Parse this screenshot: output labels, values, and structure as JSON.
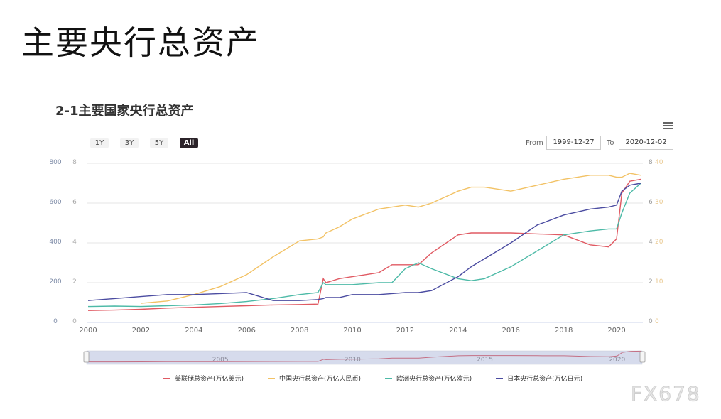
{
  "slide": {
    "title": "主要央行总资产"
  },
  "chart": {
    "title": "2-1主要国家央行总资产",
    "range_buttons": [
      {
        "label": "1Y",
        "active": false
      },
      {
        "label": "3Y",
        "active": false
      },
      {
        "label": "5Y",
        "active": false
      },
      {
        "label": "All",
        "active": true
      }
    ],
    "from_label": "From",
    "from_value": "1999-12-27",
    "to_label": "To",
    "to_value": "2020-12-02",
    "menu_icon": "hamburger-menu-icon",
    "navigator_labels": [
      "2005",
      "2010",
      "2015",
      "2020"
    ],
    "watermark": "FX678"
  },
  "chart_data": {
    "type": "line",
    "title": "2-1主要国家央行总资产",
    "x": [
      2000,
      2001,
      2002,
      2003,
      2004,
      2005,
      2006,
      2007,
      2008,
      2008.7,
      2008.9,
      2009,
      2009.5,
      2010,
      2011,
      2011.5,
      2012,
      2012.5,
      2013,
      2014,
      2014.5,
      2015,
      2016,
      2017,
      2018,
      2019,
      2019.7,
      2020,
      2020.2,
      2020.5,
      2020.92
    ],
    "x_ticks": [
      "2000",
      "2002",
      "2004",
      "2006",
      "2008",
      "2010",
      "2012",
      "2014",
      "2016",
      "2018",
      "2020"
    ],
    "y_axes": [
      {
        "position": "left-outer",
        "ticks": [
          "0",
          "200",
          "400",
          "600",
          "800"
        ],
        "range": [
          0,
          800
        ],
        "color": "#7c8aa6"
      },
      {
        "position": "left-inner",
        "ticks": [
          "0",
          "2",
          "4",
          "6",
          "8"
        ],
        "range": [
          0,
          8
        ],
        "color": "#a9a9a9"
      },
      {
        "position": "right-inner",
        "ticks": [
          "0",
          "2",
          "4",
          "6",
          "8"
        ],
        "range": [
          0,
          8
        ],
        "color": "#999999"
      },
      {
        "position": "right-outer",
        "ticks": [
          "0",
          "10",
          "20",
          "30",
          "40"
        ],
        "range": [
          0,
          40
        ],
        "color": "#e9c88f"
      }
    ],
    "series": [
      {
        "name": "美联储总资产(万亿美元)",
        "color": "#e05a63",
        "axis": "left-inner",
        "values": [
          0.6,
          0.62,
          0.66,
          0.72,
          0.76,
          0.8,
          0.84,
          0.88,
          0.9,
          0.92,
          2.2,
          2.0,
          2.2,
          2.3,
          2.5,
          2.9,
          2.9,
          2.9,
          3.5,
          4.4,
          4.5,
          4.5,
          4.5,
          4.45,
          4.4,
          3.9,
          3.8,
          4.2,
          6.5,
          7.1,
          7.2
        ]
      },
      {
        "name": "中国央行总资产(万亿人民币)",
        "color": "#f2c265",
        "axis": "right-outer",
        "values": [
          null,
          null,
          4.8,
          5.4,
          7.0,
          9.0,
          12.0,
          16.5,
          20.5,
          21.0,
          21.5,
          22.5,
          24.0,
          26.0,
          28.5,
          29.0,
          29.5,
          29.0,
          30.0,
          33.0,
          34.0,
          34.0,
          33.0,
          34.5,
          36.0,
          37.0,
          37.0,
          36.5,
          36.5,
          37.5,
          37.0
        ]
      },
      {
        "name": "欧洲央行总资产(万亿欧元)",
        "color": "#4dbaa7",
        "axis": "left-inner",
        "values": [
          0.8,
          0.82,
          0.8,
          0.84,
          0.88,
          0.95,
          1.05,
          1.2,
          1.4,
          1.5,
          2.0,
          1.9,
          1.9,
          1.9,
          2.0,
          2.0,
          2.7,
          3.0,
          2.7,
          2.2,
          2.1,
          2.2,
          2.8,
          3.6,
          4.4,
          4.6,
          4.7,
          4.7,
          5.5,
          6.5,
          7.0
        ]
      },
      {
        "name": "日本央行总资产(万亿日元)",
        "color": "#4b4ca1",
        "axis": "left-outer",
        "values": [
          110,
          120,
          130,
          140,
          140,
          145,
          150,
          110,
          110,
          115,
          120,
          125,
          125,
          140,
          140,
          145,
          150,
          150,
          160,
          230,
          280,
          320,
          400,
          490,
          540,
          570,
          580,
          590,
          660,
          690,
          700
        ]
      }
    ],
    "legend_position": "bottom",
    "grid": true
  }
}
